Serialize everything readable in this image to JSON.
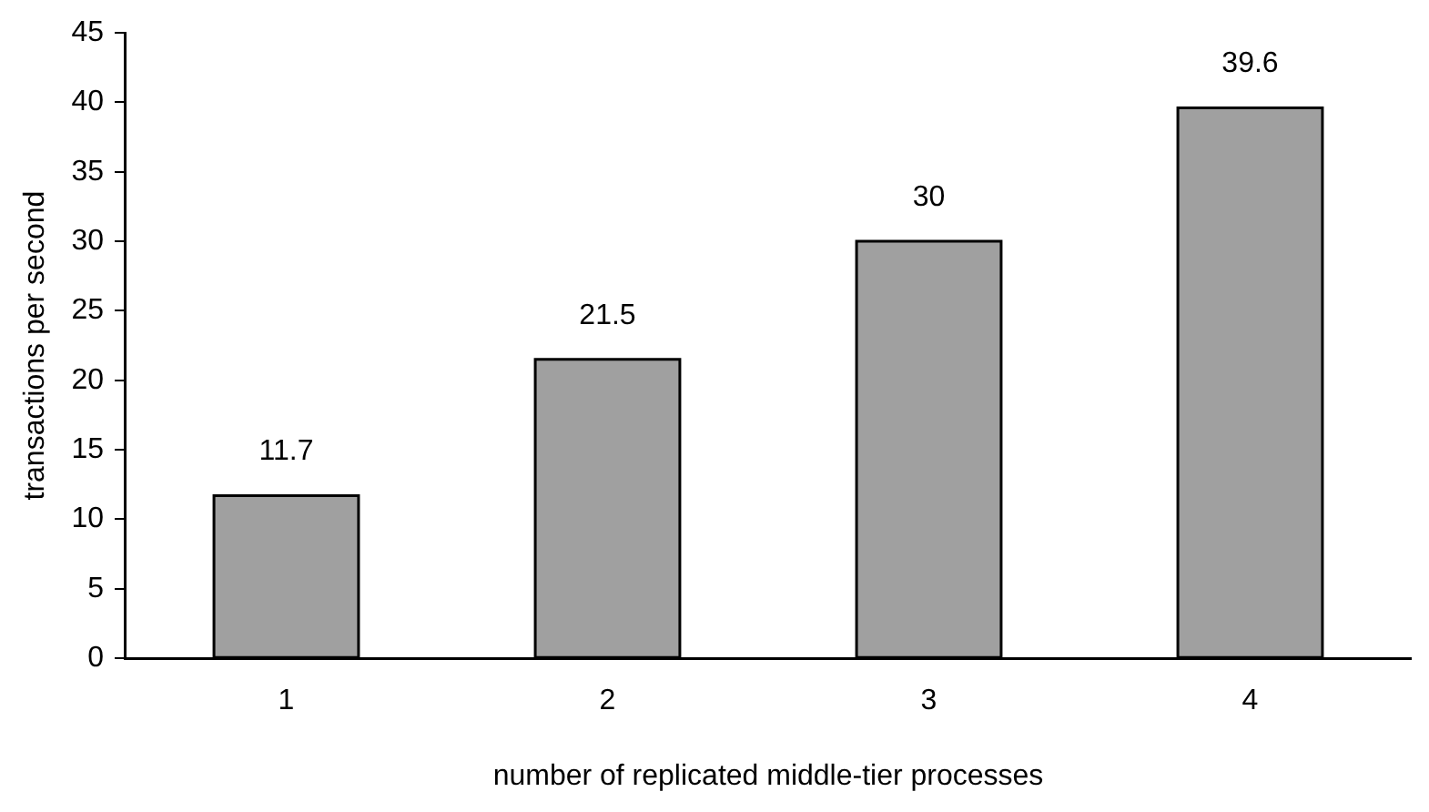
{
  "chart_data": {
    "type": "bar",
    "xlabel": "number of replicated middle-tier processes",
    "ylabel": "transactions per second",
    "categories": [
      "1",
      "2",
      "3",
      "4"
    ],
    "values": [
      11.7,
      21.5,
      30,
      39.6
    ],
    "color": "#a0a0a0",
    "ylim": [
      0,
      45
    ],
    "yticks": [
      0,
      5,
      10,
      15,
      20,
      25,
      30,
      35,
      40,
      45
    ],
    "grid": false,
    "legend": false,
    "data_labels": true
  }
}
